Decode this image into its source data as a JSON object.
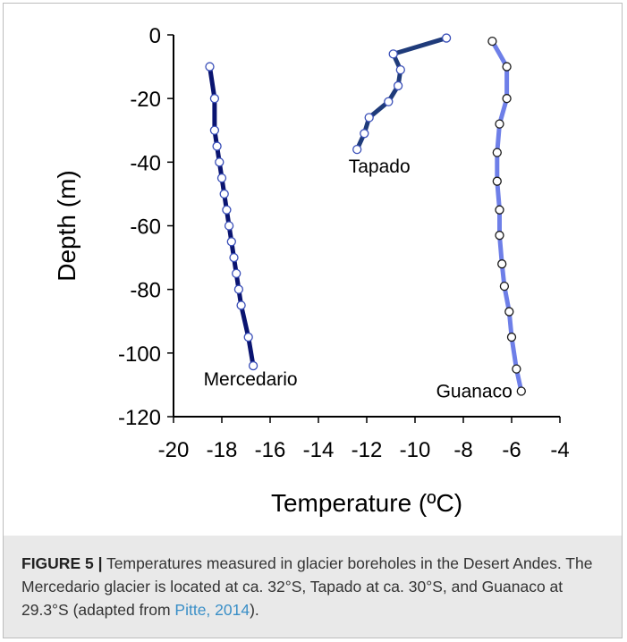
{
  "figure": {
    "caption_label": "FIGURE 5 |",
    "caption_text_1": " Temperatures measured in glacier boreholes in the Desert Andes. The Mercedario glacier is located at ca. 32°S, Tapado at ca. 30°S, and Guanaco at 29.3°S (adapted from ",
    "caption_link": "Pitte, 2014",
    "caption_text_2": ")."
  },
  "chart_data": {
    "type": "line",
    "xlabel": "Temperature (ºC)",
    "ylabel": "Depth (m)",
    "xlim": [
      -20,
      -4
    ],
    "ylim": [
      -120,
      0
    ],
    "xticks": [
      "-20",
      "-18",
      "-16",
      "-14",
      "-12",
      "-10",
      "-8",
      "-6",
      "-4"
    ],
    "yticks": [
      "0",
      "-20",
      "-40",
      "-60",
      "-80",
      "-100",
      "-120"
    ],
    "grid": false,
    "legend": "none",
    "series": [
      {
        "name": "Mercedario",
        "color": "#0a1470",
        "marker_fill": "#ffffff",
        "marker_stroke": "#3a4fb8",
        "points": [
          {
            "x": -18.5,
            "y": -10
          },
          {
            "x": -18.3,
            "y": -20
          },
          {
            "x": -18.3,
            "y": -30
          },
          {
            "x": -18.2,
            "y": -35
          },
          {
            "x": -18.1,
            "y": -40
          },
          {
            "x": -18.0,
            "y": -45
          },
          {
            "x": -17.9,
            "y": -50
          },
          {
            "x": -17.8,
            "y": -55
          },
          {
            "x": -17.7,
            "y": -60
          },
          {
            "x": -17.6,
            "y": -65
          },
          {
            "x": -17.5,
            "y": -70
          },
          {
            "x": -17.4,
            "y": -75
          },
          {
            "x": -17.3,
            "y": -80
          },
          {
            "x": -17.2,
            "y": -85
          },
          {
            "x": -16.9,
            "y": -95
          },
          {
            "x": -16.7,
            "y": -104
          }
        ]
      },
      {
        "name": "Tapado",
        "color": "#1f3b7a",
        "marker_fill": "#ffffff",
        "marker_stroke": "#3a4fb8",
        "points": [
          {
            "x": -8.7,
            "y": -1
          },
          {
            "x": -10.9,
            "y": -6
          },
          {
            "x": -10.6,
            "y": -11
          },
          {
            "x": -10.7,
            "y": -16
          },
          {
            "x": -11.1,
            "y": -21
          },
          {
            "x": -11.9,
            "y": -26
          },
          {
            "x": -12.1,
            "y": -31
          },
          {
            "x": -12.4,
            "y": -36
          }
        ]
      },
      {
        "name": "Guanaco",
        "color": "#6e7fe8",
        "marker_fill": "#ffffff",
        "marker_stroke": "#1a1a1a",
        "points": [
          {
            "x": -6.8,
            "y": -2
          },
          {
            "x": -6.2,
            "y": -10
          },
          {
            "x": -6.2,
            "y": -20
          },
          {
            "x": -6.5,
            "y": -28
          },
          {
            "x": -6.6,
            "y": -37
          },
          {
            "x": -6.6,
            "y": -46
          },
          {
            "x": -6.5,
            "y": -55
          },
          {
            "x": -6.5,
            "y": -63
          },
          {
            "x": -6.4,
            "y": -72
          },
          {
            "x": -6.3,
            "y": -79
          },
          {
            "x": -6.1,
            "y": -87
          },
          {
            "x": -6.0,
            "y": -95
          },
          {
            "x": -5.8,
            "y": -105
          },
          {
            "x": -5.6,
            "y": -112
          }
        ]
      }
    ]
  }
}
